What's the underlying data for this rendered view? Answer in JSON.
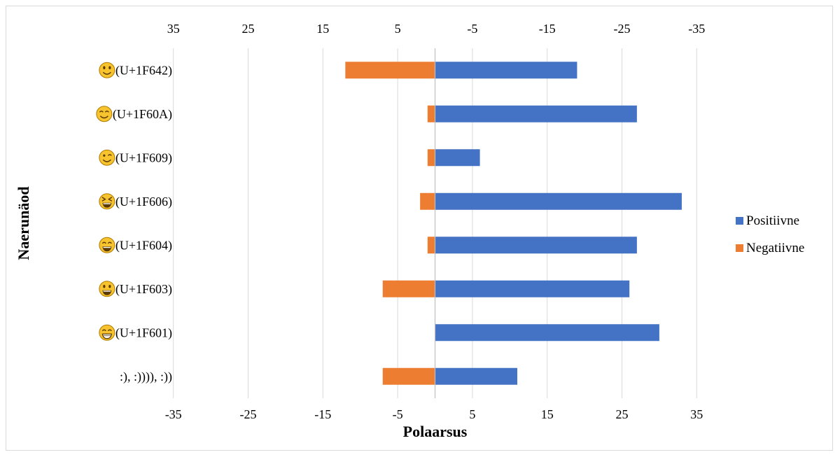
{
  "chart_data": {
    "type": "bar",
    "orientation": "horizontal",
    "stacked": true,
    "categories": [
      {
        "label": "(U+1F642)",
        "icon": "slightly-smiling-face-icon"
      },
      {
        "label": "(U+1F60A)",
        "icon": "smiling-face-with-smiling-eyes-icon"
      },
      {
        "label": "(U+1F609)",
        "icon": "winking-face-icon"
      },
      {
        "label": "(U+1F606)",
        "icon": "grinning-squinting-face-icon"
      },
      {
        "label": "(U+1F604)",
        "icon": "grinning-face-with-smiling-eyes-icon"
      },
      {
        "label": "(U+1F603)",
        "icon": "grinning-face-with-big-eyes-icon"
      },
      {
        "label": "(U+1F601)",
        "icon": "beaming-face-with-smiling-eyes-icon"
      },
      {
        "label": ":), :)))), :))",
        "icon": ""
      }
    ],
    "series": [
      {
        "name": "Positiivne",
        "color": "#4472c4",
        "values": [
          19,
          27,
          6,
          33,
          27,
          26,
          30,
          11
        ]
      },
      {
        "name": "Negatiivne",
        "color": "#ed7d31",
        "values": [
          -12,
          -1,
          -1,
          -2,
          -1,
          -7,
          0,
          -7
        ]
      }
    ],
    "xlabel": "Polaarsus",
    "ylabel": "Naerunäod",
    "xlim": [
      -40,
      40
    ],
    "bottom_ticks": [
      "-35",
      "-25",
      "-15",
      "-5",
      "5",
      "15",
      "25",
      "35"
    ],
    "top_ticks": [
      "35",
      "25",
      "15",
      "5",
      "-5",
      "-15",
      "-25",
      "-35"
    ],
    "tick_values": [
      -35,
      -25,
      -15,
      -5,
      5,
      15,
      25,
      35
    ],
    "grid": true,
    "legend_position": "right",
    "colors": {
      "grid": "#d9d9d9",
      "zero_line": "#bfbfbf",
      "emoji_face": "#f7c32e",
      "emoji_outline": "#b07a00"
    }
  }
}
